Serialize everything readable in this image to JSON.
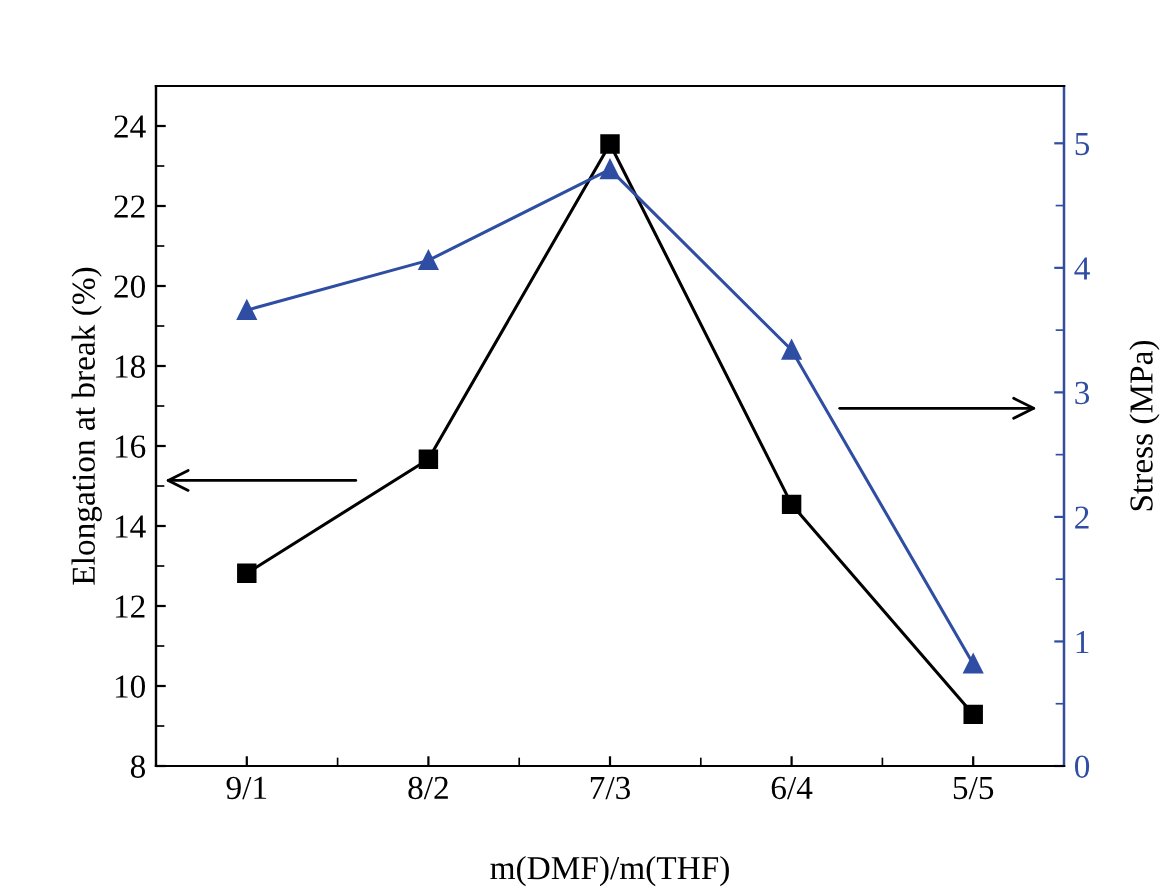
{
  "chart_data": {
    "type": "line",
    "xlabel": "m(DMF)/m(THF)",
    "ylabel": "Elongation at break (%)",
    "y2label": "Stress (MPa)",
    "categories": [
      "9/1",
      "8/2",
      "7/3",
      "6/4",
      "5/5"
    ],
    "series": [
      {
        "color": "#000000",
        "marker": "square",
        "values": [
          12.82,
          15.67,
          23.55,
          14.54,
          9.29
        ]
      },
      {
        "color": "#2e4da3",
        "marker": "triangle",
        "axis": "y2",
        "values": [
          3.66,
          4.06,
          4.79,
          3.34,
          0.82
        ]
      }
    ],
    "ylim": [
      8,
      25
    ],
    "yticks": [
      8,
      10,
      12,
      14,
      16,
      18,
      20,
      22,
      24
    ],
    "y2lim": [
      0,
      5.46
    ],
    "y2ticks": [
      0,
      1,
      2,
      3,
      4,
      5
    ],
    "grid": false,
    "legend": false,
    "line_style": "solid"
  }
}
